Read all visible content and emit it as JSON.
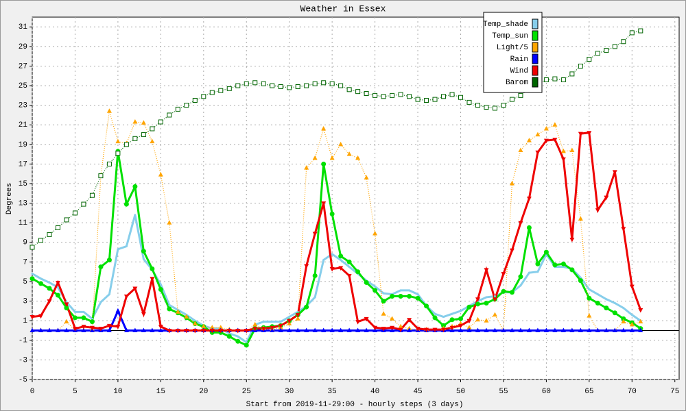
{
  "chart_data": {
    "type": "line",
    "title": "Weather in Essex",
    "x_label": "Start from 2019-11-29:00 - hourly steps (3 days)",
    "y_label": "Degrees",
    "x": [
      0,
      1,
      2,
      3,
      4,
      5,
      6,
      7,
      8,
      9,
      10,
      11,
      12,
      13,
      14,
      15,
      16,
      17,
      18,
      19,
      20,
      21,
      22,
      23,
      24,
      25,
      26,
      27,
      28,
      29,
      30,
      31,
      32,
      33,
      34,
      35,
      36,
      37,
      38,
      39,
      40,
      41,
      42,
      43,
      44,
      45,
      46,
      47,
      48,
      49,
      50,
      51,
      52,
      53,
      54,
      55,
      56,
      57,
      58,
      59,
      60,
      61,
      62,
      63,
      64,
      65,
      66,
      67,
      68,
      69,
      70,
      71
    ],
    "xlim": [
      0,
      75.5
    ],
    "xticks": [
      0,
      5,
      10,
      15,
      20,
      25,
      30,
      35,
      40,
      45,
      50,
      55,
      60,
      65,
      70,
      75
    ],
    "ylim": [
      -5,
      32
    ],
    "yticks": [
      -5,
      -3,
      -1,
      1,
      3,
      5,
      7,
      9,
      11,
      13,
      15,
      17,
      19,
      21,
      23,
      25,
      27,
      29,
      31
    ],
    "grid": true,
    "legend": "top right",
    "series": [
      {
        "name": "Temp_shade",
        "color": "#87ceeb",
        "marker": "dot",
        "values": [
          5.8,
          5.3,
          4.9,
          4.4,
          2.9,
          1.9,
          1.9,
          1.2,
          2.9,
          3.7,
          8.3,
          8.6,
          11.8,
          7.3,
          6.2,
          4.7,
          2.6,
          2.1,
          1.6,
          1.0,
          0.5,
          0.2,
          0.2,
          -0.3,
          -0.6,
          -1.2,
          0.6,
          0.9,
          0.9,
          0.9,
          1.4,
          1.9,
          2.5,
          3.4,
          7.2,
          7.8,
          7.2,
          6.5,
          5.8,
          5.1,
          4.5,
          3.8,
          3.7,
          4.1,
          4.1,
          3.7,
          2.5,
          1.7,
          1.4,
          1.7,
          2.0,
          2.5,
          3.0,
          3.4,
          3.5,
          3.9,
          3.9,
          4.6,
          5.9,
          6.0,
          7.8,
          6.5,
          6.5,
          6.3,
          5.4,
          4.2,
          3.7,
          3.2,
          2.8,
          2.3,
          1.6,
          1.0
        ]
      },
      {
        "name": "Temp_sun",
        "color": "#00e000",
        "marker": "circle",
        "values": [
          5.3,
          4.8,
          4.3,
          3.6,
          2.3,
          1.3,
          1.3,
          0.9,
          6.5,
          7.2,
          18.3,
          12.9,
          14.7,
          8.1,
          6.3,
          4.2,
          2.2,
          1.8,
          1.3,
          0.7,
          0.4,
          -0.2,
          -0.2,
          -0.6,
          -1.1,
          -1.5,
          0.2,
          0.3,
          0.4,
          0.5,
          1.0,
          1.6,
          2.4,
          5.6,
          17.0,
          11.9,
          7.6,
          7.0,
          6.0,
          4.9,
          4.1,
          3.0,
          3.5,
          3.5,
          3.5,
          3.3,
          2.5,
          1.3,
          0.5,
          1.1,
          1.2,
          2.4,
          2.7,
          2.8,
          3.2,
          4.0,
          3.9,
          5.5,
          10.5,
          6.8,
          8.0,
          6.7,
          6.8,
          6.2,
          5.1,
          3.3,
          2.8,
          2.3,
          1.8,
          1.2,
          0.8,
          0.2
        ]
      },
      {
        "name": "Light/5",
        "color": "#ffa500",
        "marker": "triangle-up",
        "dashed": true,
        "values": [
          0,
          0,
          0,
          0,
          0.9,
          0,
          0,
          0.1,
          15.8,
          22.4,
          19.3,
          19.1,
          21.3,
          21.2,
          19.3,
          15.9,
          11.0,
          1.9,
          1.4,
          0.7,
          0.4,
          0.3,
          0.3,
          0.1,
          0,
          0,
          0.6,
          0.2,
          0.1,
          0.3,
          0.7,
          1.2,
          16.6,
          17.6,
          20.6,
          17.6,
          19.0,
          18.0,
          17.6,
          15.6,
          9.9,
          1.7,
          1.2,
          0.4,
          0.2,
          0.1,
          0.1,
          0,
          0.2,
          0.4,
          0.7,
          0.3,
          1.1,
          1.0,
          1.6,
          0,
          15.0,
          18.4,
          19.4,
          20.0,
          20.6,
          21.0,
          18.3,
          18.4,
          11.4,
          1.5,
          0,
          0,
          0,
          0.9,
          0.6,
          0.9
        ]
      },
      {
        "name": "Rain",
        "color": "#0000ff",
        "marker": "triangle-up",
        "values": [
          0,
          0,
          0,
          0,
          0,
          0,
          0,
          0,
          0,
          0,
          2.0,
          0,
          0,
          0,
          0,
          0,
          0,
          0,
          0,
          0,
          0,
          0,
          0,
          0,
          0,
          0,
          0,
          0,
          0,
          0,
          0,
          0,
          0,
          0,
          0,
          0,
          0,
          0,
          0,
          0,
          0,
          0,
          0,
          0,
          0,
          0,
          0,
          0,
          0,
          0,
          0,
          0,
          0,
          0,
          0,
          0,
          0,
          0,
          0,
          0,
          0,
          0,
          0,
          0,
          0,
          0,
          0,
          0,
          0,
          0,
          0,
          0
        ]
      },
      {
        "name": "Wind",
        "color": "#ee0000",
        "marker": "triangle-down",
        "values": [
          1.4,
          1.5,
          3.0,
          4.9,
          2.7,
          0.2,
          0.4,
          0.3,
          0.2,
          0.5,
          0.4,
          3.5,
          4.3,
          1.7,
          5.3,
          0.4,
          0,
          0,
          0,
          0,
          0,
          0,
          0,
          0,
          0,
          0,
          0.2,
          0.2,
          0.3,
          0.5,
          1.0,
          1.6,
          6.6,
          9.9,
          13.0,
          6.3,
          6.4,
          5.6,
          0.9,
          1.2,
          0.3,
          0.2,
          0.3,
          0.1,
          1.1,
          0.2,
          0.1,
          0.1,
          0.1,
          0.3,
          0.5,
          1.0,
          3.2,
          6.2,
          3.2,
          5.8,
          8.2,
          11.0,
          13.5,
          18.2,
          19.4,
          19.5,
          17.5,
          9.3,
          20.1,
          20.2,
          12.3,
          13.6,
          16.2,
          10.4,
          4.5,
          2.1
        ]
      },
      {
        "name": "Barom",
        "color": "#006400",
        "marker": "square",
        "dashed": true,
        "values": [
          8.5,
          9.2,
          9.8,
          10.5,
          11.3,
          12.0,
          12.9,
          13.8,
          15.8,
          17.0,
          18.1,
          19.0,
          19.6,
          20.0,
          20.6,
          21.3,
          22.0,
          22.6,
          23.0,
          23.5,
          23.9,
          24.3,
          24.5,
          24.7,
          25.0,
          25.2,
          25.3,
          25.2,
          25.0,
          24.9,
          24.8,
          24.9,
          25.0,
          25.2,
          25.3,
          25.2,
          25.0,
          24.6,
          24.4,
          24.2,
          24.0,
          23.9,
          24.0,
          24.1,
          23.9,
          23.6,
          23.5,
          23.6,
          23.9,
          24.1,
          23.8,
          23.3,
          23.0,
          22.8,
          22.7,
          23.0,
          23.6,
          24.0,
          24.7,
          25.2,
          25.6,
          25.7,
          25.6,
          26.2,
          27.0,
          27.7,
          28.3,
          28.6,
          29.0,
          29.5,
          30.4,
          30.6
        ]
      }
    ]
  }
}
